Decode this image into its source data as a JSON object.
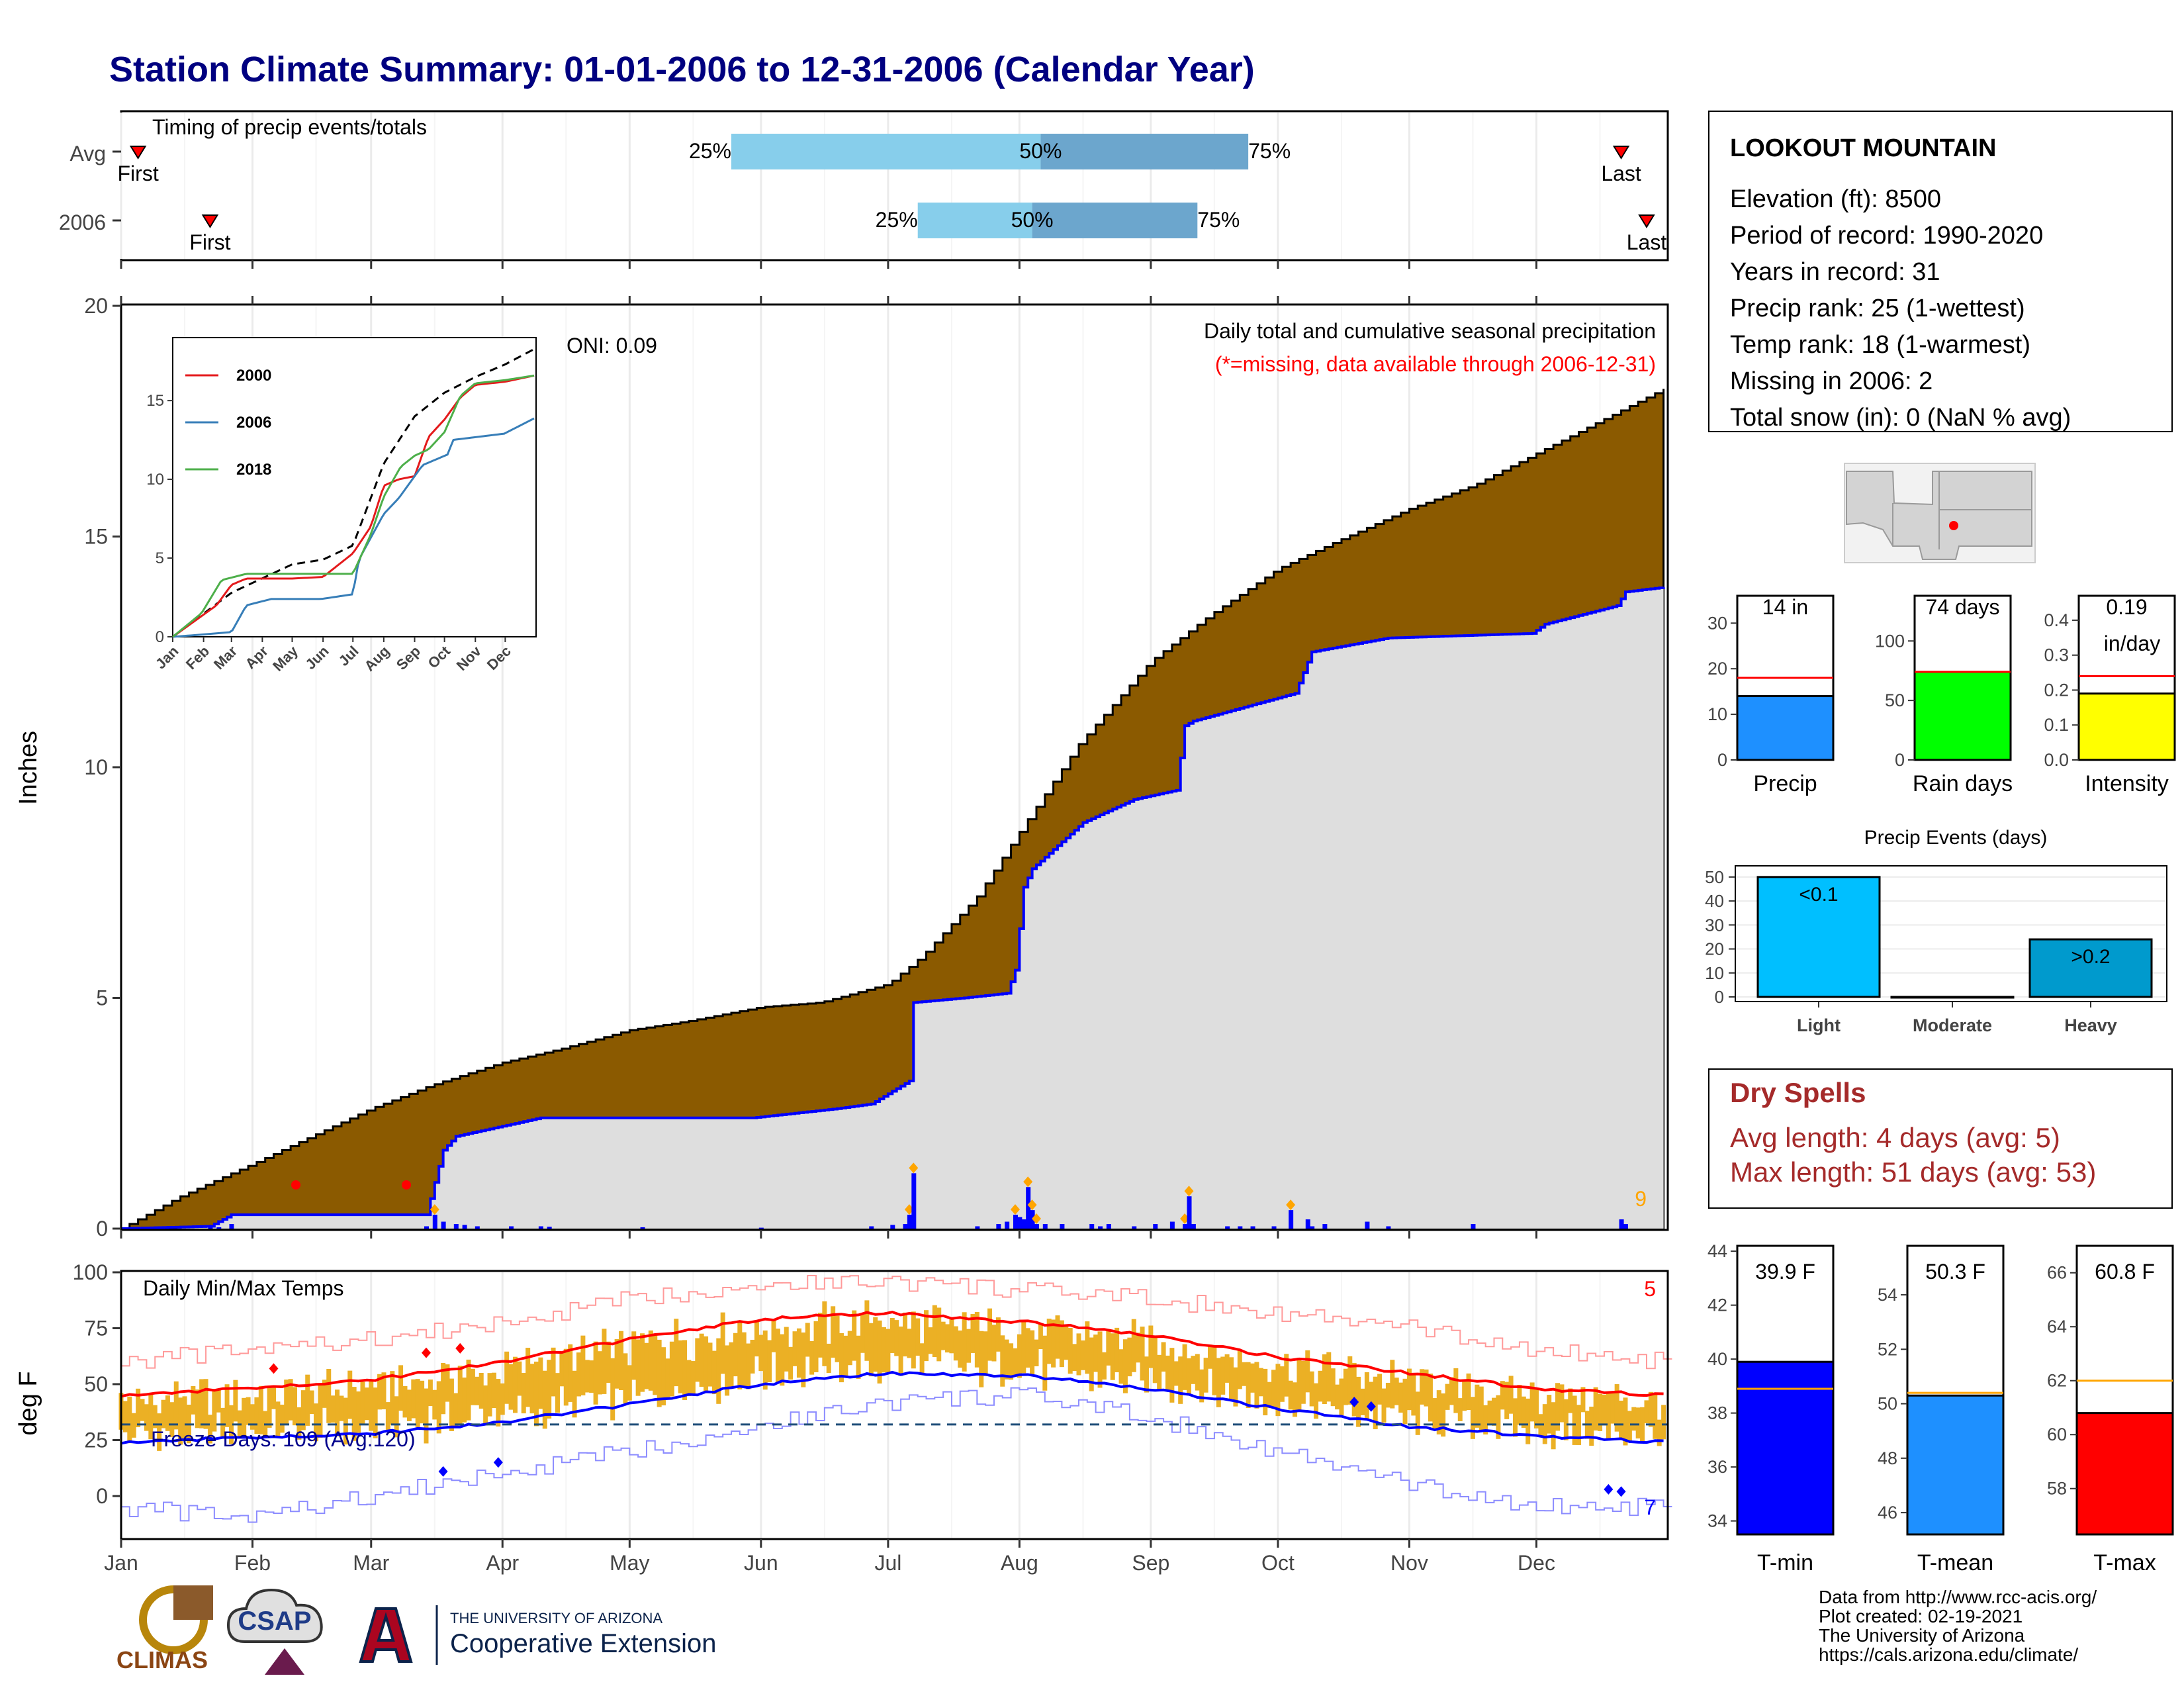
{
  "title": "Station Climate Summary: 01-01-2006 to 12-31-2006 (Calendar Year)",
  "colors": {
    "title": "#000080",
    "cum_avg_fill": "#8B5A00",
    "cum_obs_fill": "#DEDEDE",
    "cum_obs_line": "#0000FF",
    "pct_light": "#87CEEB",
    "pct_dark": "#6CA6CD",
    "temp_bars": "#EBB025",
    "tmax_line": "#FF0000",
    "tmin_line": "#0000FF",
    "dry_spells": "#A52A2A"
  },
  "timing_panel": {
    "label": "Timing of precip events/totals",
    "rows": [
      {
        "name": "Avg",
        "first_doy": 5,
        "last_doy": 355,
        "q25_doy": 145,
        "q50_doy": 218,
        "q75_doy": 267,
        "first_label": "First",
        "last_label": "Last",
        "q25_label": "25%",
        "q50_label": "50%",
        "q75_label": "75%"
      },
      {
        "name": "2006",
        "first_doy": 22,
        "last_doy": 361,
        "q25_doy": 189,
        "q50_doy": 216,
        "q75_doy": 255,
        "first_label": "First",
        "last_label": "Last",
        "q25_label": "25%",
        "q50_label": "50%",
        "q75_label": "75%"
      }
    ]
  },
  "precip_panel": {
    "ylabel": "Inches",
    "yticks": [
      "0",
      "5",
      "10",
      "15",
      "20"
    ],
    "annotation_title": "Daily total and cumulative seasonal precipitation",
    "annotation_missing": "(*=missing, data available through 2006-12-31)",
    "oni": "ONI: 0.09",
    "corner_count": "9"
  },
  "inset": {
    "yticks": [
      "0",
      "5",
      "10",
      "15"
    ],
    "months": [
      "Jan",
      "Feb",
      "Mar",
      "Apr",
      "May",
      "Jun",
      "Jul",
      "Aug",
      "Sep",
      "Oct",
      "Nov",
      "Dec"
    ],
    "legend": [
      {
        "name": "2000",
        "color": "#E41A1C"
      },
      {
        "name": "2006",
        "color": "#377EB8"
      },
      {
        "name": "2018",
        "color": "#4DAF4A"
      }
    ]
  },
  "temp_panel": {
    "label": "Daily Min/Max Temps",
    "ylabel": "deg F",
    "yticks": [
      "0",
      "25",
      "50",
      "75",
      "100"
    ],
    "freeze_days": "Freeze Days: 109 (Avg:120)",
    "max_count": "5",
    "min_count": "7"
  },
  "months": [
    "Jan",
    "Feb",
    "Mar",
    "Apr",
    "May",
    "Jun",
    "Jul",
    "Aug",
    "Sep",
    "Oct",
    "Nov",
    "Dec"
  ],
  "station_box": {
    "name": "LOOKOUT MOUNTAIN",
    "lines": [
      "Elevation (ft): 8500",
      "Period of record: 1990-2020",
      "Years in record: 31",
      "Precip rank: 25 (1-wettest)",
      "Temp rank: 18 (1-warmest)",
      "Missing in 2006: 2",
      "Total snow (in): 0 (NaN % avg)"
    ]
  },
  "stat_bars": [
    {
      "label": "Precip",
      "value_label": "14 in",
      "value": 14,
      "avg": 18,
      "ymax": 36,
      "yticks": [
        "0",
        "10",
        "20",
        "30"
      ],
      "color": "#1E90FF"
    },
    {
      "label": "Rain days",
      "value_label": "74 days",
      "value": 74,
      "avg": 74,
      "ymax": 138,
      "yticks": [
        "0",
        "50",
        "100"
      ],
      "color": "#00FF00"
    },
    {
      "label": "Intensity",
      "value_label": "0.19",
      "value_label2": "in/day",
      "value": 0.19,
      "avg": 0.24,
      "ymax": 0.47,
      "yticks": [
        "0.0",
        "0.1",
        "0.2",
        "0.3",
        "0.4"
      ],
      "color": "#FFFF00"
    }
  ],
  "precip_events": {
    "title": "Precip Events (days)",
    "yticks": [
      "0",
      "10",
      "20",
      "30",
      "40",
      "50"
    ],
    "categories": [
      "Light",
      "Moderate",
      "Heavy"
    ],
    "values": [
      50,
      0,
      24
    ],
    "bar_labels": [
      "<0.1",
      "",
      ">0.2"
    ],
    "colors": [
      "#00BFFF",
      "#4682B4",
      "#009ACD"
    ]
  },
  "dry_spells": {
    "title": "Dry Spells",
    "avg_length": "Avg length: 4 days (avg: 5)",
    "max_length": "Max length: 51 days (avg: 53)"
  },
  "temp_bars": [
    {
      "label": "T-min",
      "value_label": "39.9 F",
      "value": 39.9,
      "avg": 38.9,
      "ymin": 33.5,
      "ymax": 44.2,
      "yticks": [
        "34",
        "36",
        "38",
        "40",
        "42",
        "44"
      ],
      "color": "#0000FF"
    },
    {
      "label": "T-mean",
      "value_label": "50.3 F",
      "value": 50.3,
      "avg": 50.4,
      "ymin": 45.2,
      "ymax": 55.8,
      "yticks": [
        "46",
        "48",
        "50",
        "52",
        "54"
      ],
      "color": "#1E90FF"
    },
    {
      "label": "T-max",
      "value_label": "60.8 F",
      "value": 60.8,
      "avg": 62.0,
      "ymin": 56.3,
      "ymax": 67.0,
      "yticks": [
        "58",
        "60",
        "62",
        "64",
        "66"
      ],
      "color": "#FF0000"
    }
  ],
  "credits": [
    "Data from http://www.rcc-acis.org/",
    "Plot created: 02-19-2021",
    "The University of Arizona",
    "https://cals.arizona.edu/climate/"
  ],
  "logos": {
    "climas": "CLIMAS",
    "csap": "CSAP",
    "ua_line1": "THE UNIVERSITY OF ARIZONA",
    "ua_line2": "Cooperative Extension"
  },
  "chart_data": [
    {
      "type": "area",
      "title": "Daily total and cumulative seasonal precipitation",
      "xlabel": "",
      "ylabel": "Inches",
      "ylim": [
        0,
        20
      ],
      "x_unit": "day of year 2006",
      "series": [
        {
          "name": "Avg cumulative",
          "x": [
            1,
            15,
            32,
            46,
            60,
            74,
            91,
            105,
            121,
            135,
            152,
            166,
            182,
            190,
            196,
            203,
            213,
            227,
            244,
            258,
            274,
            288,
            305,
            320,
            335,
            350,
            365
          ],
          "values": [
            0,
            0.7,
            1.4,
            2.0,
            2.6,
            3.1,
            3.6,
            3.9,
            4.3,
            4.5,
            4.8,
            4.9,
            5.3,
            5.9,
            6.5,
            7.2,
            8.6,
            10.5,
            12.3,
            13.3,
            14.3,
            14.9,
            15.6,
            16.1,
            16.8,
            17.5,
            18.2
          ]
        },
        {
          "name": "2006 cumulative",
          "x": [
            1,
            22,
            27,
            60,
            73,
            75,
            77,
            80,
            90,
            100,
            150,
            170,
            178,
            187,
            188,
            200,
            210,
            212,
            214,
            216,
            228,
            240,
            250,
            252,
            254,
            278,
            282,
            300,
            334,
            337,
            354,
            356,
            365
          ],
          "values": [
            0,
            0.05,
            0.3,
            0.3,
            0.3,
            1.0,
            1.7,
            2.0,
            2.2,
            2.4,
            2.4,
            2.6,
            2.7,
            3.2,
            4.9,
            5.0,
            5.1,
            5.6,
            7.4,
            7.8,
            8.8,
            9.3,
            9.5,
            10.9,
            11.0,
            11.6,
            12.5,
            12.8,
            12.9,
            13.1,
            13.5,
            13.8,
            13.9
          ]
        }
      ],
      "daily_bars": {
        "x": [
          22,
          24,
          27,
          73,
          75,
          77,
          80,
          82,
          85,
          93,
          100,
          102,
          124,
          152,
          178,
          183,
          186,
          187,
          188,
          203,
          208,
          210,
          212,
          213,
          214,
          215,
          216,
          217,
          219,
          223,
          230,
          232,
          234,
          240,
          245,
          249,
          252,
          253,
          254,
          262,
          265,
          268,
          273,
          277,
          281,
          282,
          285,
          295,
          300,
          320,
          355,
          356
        ],
        "values": [
          0.05,
          0.03,
          0.1,
          0.05,
          0.3,
          0.15,
          0.1,
          0.08,
          0.05,
          0.05,
          0.05,
          0.04,
          0.03,
          0.02,
          0.05,
          0.08,
          0.1,
          0.3,
          1.2,
          0.05,
          0.1,
          0.15,
          0.3,
          0.25,
          0.2,
          0.9,
          0.4,
          0.1,
          0.1,
          0.1,
          0.1,
          0.05,
          0.1,
          0.05,
          0.1,
          0.15,
          0.1,
          0.7,
          0.1,
          0.05,
          0.05,
          0.05,
          0.05,
          0.4,
          0.2,
          0.05,
          0.1,
          0.15,
          0.05,
          0.1,
          0.2,
          0.1
        ]
      }
    },
    {
      "type": "line",
      "title": "",
      "ylim": [
        0,
        19
      ],
      "x_unit": "day of year",
      "series": [
        {
          "name": "Avg",
          "x": [
            1,
            60,
            121,
            152,
            182,
            213,
            244,
            274,
            305,
            335,
            365
          ],
          "values": [
            0,
            2.8,
            4.6,
            4.9,
            5.8,
            11.0,
            14.0,
            15.5,
            16.5,
            17.3,
            18.3
          ]
        },
        {
          "name": "2000",
          "x": [
            1,
            45,
            60,
            75,
            121,
            152,
            182,
            200,
            213,
            228,
            244,
            258,
            274,
            290,
            305,
            335,
            365
          ],
          "values": [
            0,
            2.0,
            3.3,
            3.7,
            3.7,
            3.8,
            5.3,
            7.0,
            9.6,
            10.0,
            10.2,
            12.7,
            13.8,
            15.2,
            16.0,
            16.2,
            16.6
          ]
        },
        {
          "name": "2006",
          "x": [
            1,
            22,
            60,
            75,
            100,
            150,
            182,
            188,
            213,
            228,
            252,
            278,
            282,
            334,
            365
          ],
          "values": [
            0,
            0.1,
            0.3,
            2.0,
            2.4,
            2.4,
            2.7,
            4.9,
            7.8,
            8.8,
            10.9,
            11.6,
            12.5,
            12.9,
            13.9
          ]
        },
        {
          "name": "2018",
          "x": [
            1,
            30,
            50,
            75,
            121,
            182,
            200,
            213,
            230,
            244,
            258,
            274,
            290,
            305,
            335,
            365
          ],
          "values": [
            0,
            1.5,
            3.6,
            4.0,
            4.0,
            4.0,
            6.5,
            8.9,
            10.8,
            11.5,
            11.9,
            13.0,
            15.3,
            16.1,
            16.3,
            16.6
          ]
        }
      ]
    },
    {
      "type": "line",
      "title": "Daily Min/Max Temps",
      "ylabel": "deg F",
      "ylim": [
        -20,
        100
      ],
      "x_unit": "day of year 2006",
      "series": [
        {
          "name": "Avg max",
          "x": [
            1,
            30,
            60,
            91,
            121,
            152,
            182,
            213,
            244,
            274,
            305,
            335,
            365
          ],
          "values": [
            45,
            48,
            52,
            60,
            70,
            79,
            82,
            78,
            72,
            62,
            55,
            48,
            45
          ]
        },
        {
          "name": "Avg min",
          "x": [
            1,
            30,
            60,
            91,
            121,
            152,
            182,
            213,
            244,
            274,
            305,
            335,
            365
          ],
          "values": [
            24,
            26,
            28,
            33,
            41,
            50,
            55,
            54,
            48,
            39,
            31,
            27,
            24
          ]
        },
        {
          "name": "Record max",
          "x": [
            1,
            30,
            60,
            91,
            121,
            152,
            182,
            213,
            244,
            274,
            305,
            335,
            365
          ],
          "values": [
            60,
            65,
            70,
            77,
            88,
            95,
            96,
            92,
            88,
            82,
            75,
            65,
            60
          ]
        },
        {
          "name": "Record min",
          "x": [
            1,
            30,
            60,
            91,
            121,
            152,
            182,
            213,
            244,
            274,
            305,
            335,
            365
          ],
          "values": [
            -5,
            -10,
            0,
            10,
            20,
            32,
            42,
            45,
            35,
            20,
            5,
            -5,
            -5
          ]
        },
        {
          "name": "Freeze threshold",
          "x": [
            1,
            365
          ],
          "values": [
            32,
            32
          ]
        }
      ]
    },
    {
      "type": "bar",
      "title": "Precip Events (days)",
      "categories": [
        "Light",
        "Moderate",
        "Heavy"
      ],
      "values": [
        50,
        0,
        24
      ],
      "ylim": [
        0,
        53
      ]
    }
  ]
}
